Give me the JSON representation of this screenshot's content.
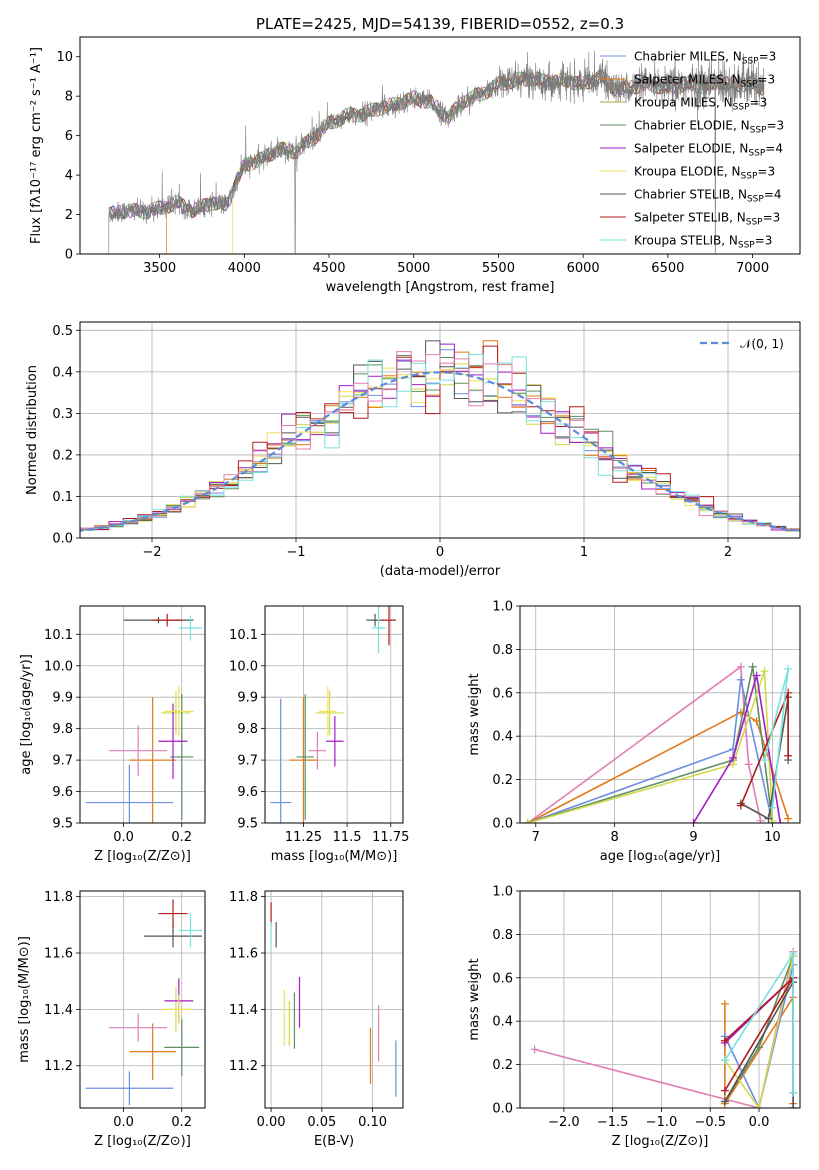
{
  "figure_title": "PLATE=2425, MJD=54139, FIBERID=0552, z=0.3",
  "colors": [
    "#6d8ee0",
    "#e07b1a",
    "#cfd94a",
    "#5f8f5f",
    "#a41bc4",
    "#ede25a",
    "#555555",
    "#b31b1b",
    "#7ae0dc",
    "#e07fb5"
  ],
  "chart_data": [
    {
      "id": "spectrum",
      "type": "line",
      "title": "PLATE=2425, MJD=54139, FIBERID=0552, z=0.3",
      "xlabel": "wavelength [Angstrom, rest frame]",
      "ylabel": "Flux [fλ10⁻¹⁷ erg cm⁻² s⁻¹ A⁻¹]",
      "xlim": [
        3030,
        7280
      ],
      "ylim": [
        0,
        11
      ],
      "xticks": [
        3500,
        4000,
        4500,
        5000,
        5500,
        6000,
        6500,
        7000
      ],
      "yticks": [
        0,
        2,
        4,
        6,
        8,
        10
      ],
      "grid": false,
      "legend_position": "upper-right",
      "observed_range": [
        3200,
        7070
      ],
      "continuum_knots": {
        "wavelength": [
          3200,
          3300,
          3400,
          3500,
          3600,
          3700,
          3800,
          3900,
          3950,
          4000,
          4100,
          4200,
          4300,
          4400,
          4500,
          4600,
          4700,
          4800,
          4900,
          5000,
          5100,
          5200,
          5300,
          5400,
          5500,
          5600,
          5700,
          5800,
          5900,
          6000,
          6100,
          6200,
          6300,
          6400,
          6500,
          6600,
          6700,
          6800,
          6900,
          7000,
          7070
        ],
        "flux": [
          2.0,
          2.2,
          2.15,
          2.3,
          2.6,
          2.2,
          2.6,
          2.5,
          3.6,
          4.5,
          4.8,
          5.3,
          5.2,
          5.8,
          6.6,
          7.0,
          7.1,
          7.4,
          7.6,
          7.9,
          7.7,
          6.9,
          7.8,
          8.1,
          8.6,
          8.8,
          8.9,
          8.7,
          8.8,
          8.6,
          9.0,
          8.3,
          8.5,
          8.6,
          8.4,
          8.6,
          8.5,
          8.7,
          8.6,
          8.6,
          8.4
        ]
      },
      "legend": [
        {
          "label": "Chabrier MILES, N",
          "sub": "SSP",
          "tail": "=3",
          "color": "#6d8ee0"
        },
        {
          "label": "Salpeter MILES, N",
          "sub": "SSP",
          "tail": "=3",
          "color": "#e07b1a"
        },
        {
          "label": "Kroupa MILES, N",
          "sub": "SSP",
          "tail": "=3",
          "color": "#a8a83a"
        },
        {
          "label": "Chabrier ELODIE, N",
          "sub": "SSP",
          "tail": "=3",
          "color": "#5f8f5f"
        },
        {
          "label": "Salpeter ELODIE, N",
          "sub": "SSP",
          "tail": "=4",
          "color": "#a41bc4"
        },
        {
          "label": "Kroupa ELODIE, N",
          "sub": "SSP",
          "tail": "=3",
          "color": "#ede25a"
        },
        {
          "label": "Chabrier STELIB, N",
          "sub": "SSP",
          "tail": "=4",
          "color": "#555555"
        },
        {
          "label": "Salpeter STELIB, N",
          "sub": "SSP",
          "tail": "=3",
          "color": "#b31b1b"
        },
        {
          "label": "Kroupa STELIB, N",
          "sub": "SSP",
          "tail": "=3",
          "color": "#7ae0dc"
        }
      ]
    },
    {
      "id": "residuals",
      "type": "line",
      "xlabel": "(data-model)/error",
      "ylabel": "Normed distribution",
      "xlim": [
        -2.5,
        2.5
      ],
      "ylim": [
        0,
        0.52
      ],
      "xticks": [
        -2,
        -1,
        0,
        1,
        2
      ],
      "yticks": [
        0.0,
        0.1,
        0.2,
        0.3,
        0.4,
        0.5
      ],
      "grid": true,
      "legend": [
        {
          "label": "𝒩(0, 1)",
          "color": "#6d8ee0",
          "style": "dashed"
        }
      ],
      "legend_position": "upper-right",
      "bin_width": 0.1,
      "bin_range": [
        -2.5,
        2.5
      ]
    },
    {
      "id": "age_vs_Z",
      "type": "scatter",
      "xlabel": "Z [log₁₀(Z/Z⊙)]",
      "ylabel": "age  [log₁₀(age/yr)]",
      "xlim": [
        -0.15,
        0.28
      ],
      "ylim": [
        9.5,
        10.19
      ],
      "xticks": [
        0.0,
        0.2
      ],
      "ytick_values": [
        9.5,
        9.6,
        9.7,
        9.8,
        9.9,
        10.0,
        10.1
      ],
      "yticks": [
        "9.5",
        "9.6",
        "9.7",
        "9.8",
        "9.9",
        "10.0",
        "10.1"
      ],
      "grid": true,
      "points": [
        {
          "x": 0.02,
          "y": 9.565,
          "xerr": 0.15,
          "yerr": 0.12,
          "color": "#6d8ee0"
        },
        {
          "x": 0.1,
          "y": 9.7,
          "xerr": 0.08,
          "yerr": 0.2,
          "color": "#e07b1a"
        },
        {
          "x": 0.18,
          "y": 9.85,
          "xerr": 0.05,
          "yerr": 0.07,
          "color": "#cfd94a"
        },
        {
          "x": 0.2,
          "y": 9.71,
          "xerr": 0.04,
          "yerr": 0.2,
          "color": "#5f8f5f"
        },
        {
          "x": 0.17,
          "y": 9.76,
          "xerr": 0.05,
          "yerr": 0.12,
          "color": "#a41bc4"
        },
        {
          "x": 0.19,
          "y": 9.855,
          "xerr": 0.05,
          "yerr": 0.08,
          "color": "#ede25a"
        },
        {
          "x": 0.12,
          "y": 10.145,
          "xerr": 0.12,
          "yerr": 0.01,
          "color": "#555555"
        },
        {
          "x": 0.15,
          "y": 10.145,
          "xerr": 0.05,
          "yerr": 0.02,
          "color": "#b31b1b"
        },
        {
          "x": 0.23,
          "y": 10.12,
          "xerr": 0.04,
          "yerr": 0.04,
          "color": "#7ae0dc"
        },
        {
          "x": 0.05,
          "y": 9.73,
          "xerr": 0.1,
          "yerr": 0.08,
          "color": "#e07fb5"
        }
      ]
    },
    {
      "id": "age_vs_mass",
      "type": "scatter",
      "xlabel": "mass [log₁₀(M/M⊙)]",
      "ylabel": "",
      "xlim": [
        11.03,
        11.82
      ],
      "ylim": [
        9.5,
        10.19
      ],
      "xticks": [
        11.25,
        11.5,
        11.75
      ],
      "ytick_values": [
        9.5,
        9.6,
        9.7,
        9.8,
        9.9,
        10.0,
        10.1
      ],
      "yticks": [
        "9.5",
        "9.6",
        "9.7",
        "9.8",
        "9.9",
        "10.0",
        "10.1"
      ],
      "grid": true,
      "points": [
        {
          "x": 11.12,
          "y": 9.565,
          "xerr": 0.06,
          "yerr": 0.33,
          "color": "#6d8ee0"
        },
        {
          "x": 11.25,
          "y": 9.7,
          "xerr": 0.08,
          "yerr": 0.2,
          "color": "#e07b1a"
        },
        {
          "x": 11.4,
          "y": 9.85,
          "xerr": 0.08,
          "yerr": 0.07,
          "color": "#cfd94a"
        },
        {
          "x": 11.26,
          "y": 9.71,
          "xerr": 0.05,
          "yerr": 0.2,
          "color": "#5f8f5f"
        },
        {
          "x": 11.43,
          "y": 9.76,
          "xerr": 0.05,
          "yerr": 0.08,
          "color": "#a41bc4"
        },
        {
          "x": 11.39,
          "y": 9.855,
          "xerr": 0.05,
          "yerr": 0.08,
          "color": "#ede25a"
        },
        {
          "x": 11.66,
          "y": 10.145,
          "xerr": 0.05,
          "yerr": 0.02,
          "color": "#555555"
        },
        {
          "x": 11.74,
          "y": 10.145,
          "xerr": 0.04,
          "yerr": 0.08,
          "color": "#b31b1b"
        },
        {
          "x": 11.68,
          "y": 10.12,
          "xerr": 0.04,
          "yerr": 0.08,
          "color": "#7ae0dc"
        },
        {
          "x": 11.33,
          "y": 9.73,
          "xerr": 0.05,
          "yerr": 0.06,
          "color": "#e07fb5"
        }
      ]
    },
    {
      "id": "massweight_vs_age",
      "type": "line",
      "xlabel": "age  [log₁₀(age/yr)]",
      "ylabel": "mass weight",
      "xlim": [
        6.8,
        10.35
      ],
      "ylim": [
        0,
        1.0
      ],
      "xticks": [
        7,
        8,
        9,
        10
      ],
      "yticks": [
        0.0,
        0.2,
        0.4,
        0.6,
        0.8,
        1.0
      ],
      "grid": true,
      "series": [
        {
          "color": "#e07fb5",
          "points": [
            [
              6.9,
              0.0
            ],
            [
              9.6,
              0.72
            ],
            [
              9.7,
              0.27
            ],
            [
              9.85,
              0.01
            ]
          ]
        },
        {
          "color": "#e07b1a",
          "points": [
            [
              6.9,
              0.0
            ],
            [
              9.6,
              0.51
            ],
            [
              9.8,
              0.47
            ],
            [
              10.2,
              0.02
            ]
          ]
        },
        {
          "color": "#6d8ee0",
          "points": [
            [
              6.9,
              0.0
            ],
            [
              9.5,
              0.34
            ],
            [
              9.6,
              0.66
            ],
            [
              10.0,
              0.0
            ]
          ]
        },
        {
          "color": "#5f8f5f",
          "points": [
            [
              6.9,
              0.0
            ],
            [
              9.5,
              0.29
            ],
            [
              9.75,
              0.72
            ],
            [
              10.0,
              0.0
            ]
          ]
        },
        {
          "color": "#cfd94a",
          "points": [
            [
              6.9,
              0.0
            ],
            [
              9.5,
              0.27
            ],
            [
              9.9,
              0.7
            ],
            [
              10.0,
              0.01
            ]
          ]
        },
        {
          "color": "#a41bc4",
          "points": [
            [
              9.0,
              0.0
            ],
            [
              9.5,
              0.3
            ],
            [
              9.8,
              0.68
            ],
            [
              10.1,
              0.0
            ]
          ]
        },
        {
          "color": "#555555",
          "points": [
            [
              9.6,
              0.09
            ],
            [
              9.95,
              0.02
            ],
            [
              10.2,
              0.58
            ],
            [
              10.2,
              0.29
            ]
          ]
        },
        {
          "color": "#b31b1b",
          "points": [
            [
              9.6,
              0.08
            ],
            [
              10.2,
              0.6
            ],
            [
              10.2,
              0.31
            ]
          ]
        },
        {
          "color": "#7ae0dc",
          "points": [
            [
              9.9,
              0.29
            ],
            [
              10.2,
              0.71
            ],
            [
              10.0,
              0.07
            ]
          ]
        }
      ]
    },
    {
      "id": "mass_vs_Z",
      "type": "scatter",
      "xlabel": "Z [log₁₀(Z/Z⊙)]",
      "ylabel": "mass [log₁₀(M/M⊙)]",
      "xlim": [
        -0.15,
        0.28
      ],
      "ylim": [
        11.05,
        11.82
      ],
      "xticks": [
        0.0,
        0.2
      ],
      "ytick_values": [
        11.2,
        11.4,
        11.6,
        11.8
      ],
      "yticks": [
        "11.2",
        "11.4",
        "11.6",
        "11.8"
      ],
      "grid": true,
      "points": [
        {
          "x": 0.02,
          "y": 11.12,
          "xerr": 0.15,
          "yerr": 0.06,
          "color": "#6d8ee0"
        },
        {
          "x": 0.1,
          "y": 11.25,
          "xerr": 0.08,
          "yerr": 0.1,
          "color": "#e07b1a"
        },
        {
          "x": 0.18,
          "y": 11.4,
          "xerr": 0.05,
          "yerr": 0.08,
          "color": "#cfd94a"
        },
        {
          "x": 0.2,
          "y": 11.265,
          "xerr": 0.06,
          "yerr": 0.1,
          "color": "#5f8f5f"
        },
        {
          "x": 0.19,
          "y": 11.43,
          "xerr": 0.05,
          "yerr": 0.08,
          "color": "#a41bc4"
        },
        {
          "x": 0.19,
          "y": 11.4,
          "xerr": 0.05,
          "yerr": 0.05,
          "color": "#ede25a"
        },
        {
          "x": 0.17,
          "y": 11.66,
          "xerr": 0.1,
          "yerr": 0.04,
          "color": "#555555"
        },
        {
          "x": 0.17,
          "y": 11.74,
          "xerr": 0.05,
          "yerr": 0.05,
          "color": "#b31b1b"
        },
        {
          "x": 0.23,
          "y": 11.68,
          "xerr": 0.04,
          "yerr": 0.06,
          "color": "#7ae0dc"
        },
        {
          "x": 0.05,
          "y": 11.335,
          "xerr": 0.1,
          "yerr": 0.05,
          "color": "#e07fb5"
        }
      ]
    },
    {
      "id": "mass_vs_EBV",
      "type": "scatter",
      "xlabel": "E(B-V)",
      "ylabel": "",
      "xlim": [
        -0.006,
        0.13
      ],
      "ylim": [
        11.05,
        11.82
      ],
      "xticks": [
        0.0,
        0.05,
        0.1
      ],
      "xtick_labels": [
        "0.00",
        "0.05",
        "0.10"
      ],
      "ytick_values": [
        11.2,
        11.4,
        11.6,
        11.8
      ],
      "yticks": [
        "11.2",
        "11.4",
        "11.6",
        "11.8"
      ],
      "grid": true,
      "points": [
        {
          "x": 0.123,
          "y": 11.19,
          "xerr": 0.0,
          "yerr": 0.1,
          "color": "#6d8ee0"
        },
        {
          "x": 0.098,
          "y": 11.235,
          "xerr": 0.0,
          "yerr": 0.1,
          "color": "#e07b1a"
        },
        {
          "x": 0.018,
          "y": 11.35,
          "xerr": 0.0,
          "yerr": 0.08,
          "color": "#cfd94a"
        },
        {
          "x": 0.023,
          "y": 11.36,
          "xerr": 0.0,
          "yerr": 0.1,
          "color": "#5f8f5f"
        },
        {
          "x": 0.028,
          "y": 11.425,
          "xerr": 0.0,
          "yerr": 0.09,
          "color": "#a41bc4"
        },
        {
          "x": 0.013,
          "y": 11.37,
          "xerr": 0.0,
          "yerr": 0.1,
          "color": "#ede25a"
        },
        {
          "x": 0.005,
          "y": 11.665,
          "xerr": 0.0,
          "yerr": 0.045,
          "color": "#555555"
        },
        {
          "x": 0.0,
          "y": 11.74,
          "xerr": 0.0,
          "yerr": 0.04,
          "color": "#b31b1b"
        },
        {
          "x": 0.0,
          "y": 11.66,
          "xerr": 0.0,
          "yerr": 0.05,
          "color": "#7ae0dc"
        },
        {
          "x": 0.106,
          "y": 11.315,
          "xerr": 0.0,
          "yerr": 0.1,
          "color": "#e07fb5"
        }
      ]
    },
    {
      "id": "massweight_vs_Z",
      "type": "line",
      "xlabel": "Z [log₁₀(Z/Z⊙)]",
      "ylabel": "mass weight",
      "xlim": [
        -2.45,
        0.42
      ],
      "ylim": [
        0,
        1.0
      ],
      "xticks": [
        -2.0,
        -1.5,
        -1.0,
        -0.5,
        0.0
      ],
      "yticks": [
        0.0,
        0.2,
        0.4,
        0.6,
        0.8,
        1.0
      ],
      "grid": true,
      "series": [
        {
          "color": "#e07fb5",
          "points": [
            [
              -2.3,
              0.27
            ],
            [
              0.0,
              0.0
            ],
            [
              0.35,
              0.72
            ]
          ]
        },
        {
          "color": "#e07b1a",
          "points": [
            [
              -0.35,
              0.48
            ],
            [
              -0.35,
              0.02
            ],
            [
              0.35,
              0.51
            ],
            [
              0.35,
              0.02
            ]
          ]
        },
        {
          "color": "#6d8ee0",
          "points": [
            [
              -0.35,
              0.33
            ],
            [
              0.0,
              0.0
            ],
            [
              0.35,
              0.66
            ],
            [
              0.35,
              0.07
            ]
          ]
        },
        {
          "color": "#5f8f5f",
          "points": [
            [
              -0.35,
              0.03
            ],
            [
              0.0,
              0.28
            ],
            [
              0.35,
              0.7
            ]
          ]
        },
        {
          "color": "#cfd94a",
          "points": [
            [
              -0.35,
              0.22
            ],
            [
              0.0,
              0.0
            ],
            [
              0.35,
              0.7
            ]
          ]
        },
        {
          "color": "#a41bc4",
          "points": [
            [
              -0.35,
              0.3
            ],
            [
              0.35,
              0.6
            ],
            [
              0.35,
              0.0
            ]
          ]
        },
        {
          "color": "#555555",
          "points": [
            [
              -0.35,
              0.03
            ],
            [
              0.35,
              0.58
            ],
            [
              0.35,
              0.0
            ]
          ]
        },
        {
          "color": "#b31b1b",
          "points": [
            [
              -0.35,
              0.31
            ],
            [
              0.35,
              0.6
            ],
            [
              -0.35,
              0.08
            ]
          ]
        },
        {
          "color": "#7ae0dc",
          "points": [
            [
              -0.35,
              0.22
            ],
            [
              0.35,
              0.71
            ],
            [
              0.35,
              0.07
            ]
          ]
        }
      ]
    }
  ]
}
